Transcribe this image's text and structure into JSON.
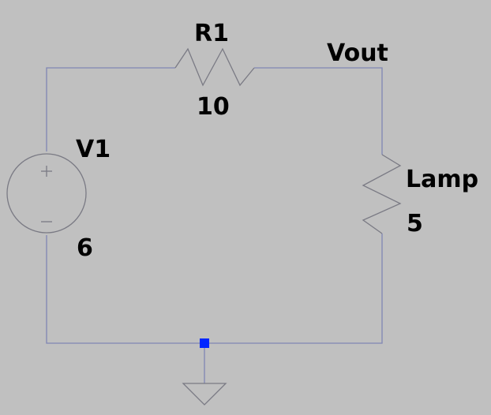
{
  "components": {
    "r1": {
      "name": "R1",
      "value": "10"
    },
    "v1": {
      "name": "V1",
      "value": "6"
    },
    "lamp": {
      "name": "Lamp",
      "value": "5"
    }
  },
  "nets": {
    "vout": {
      "label": "Vout"
    }
  },
  "symbols": {
    "ground": "ground-icon",
    "voltage_source": "dc-voltage-source-icon",
    "resistor": "resistor-zigzag-icon",
    "junction": "junction-dot"
  },
  "colors": {
    "background": "#c0c0c0",
    "wire": "#7f86b4",
    "component": "#7a7a84",
    "junction": "#0026ff",
    "label": "#000000"
  }
}
